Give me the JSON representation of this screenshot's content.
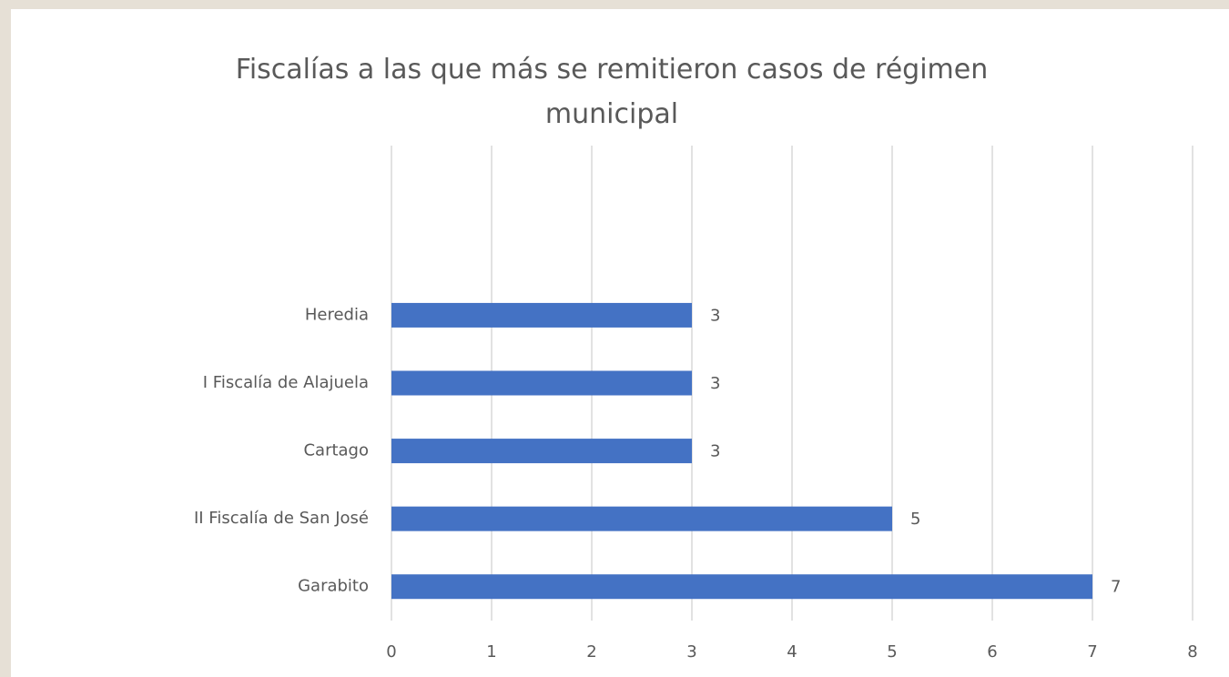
{
  "chart_data": {
    "type": "bar",
    "orientation": "horizontal",
    "title": "Fiscalías a las que más se remitieron casos de régimen municipal",
    "categories": [
      "Garabito",
      "II Fiscalía de San José",
      "Cartago",
      "I Fiscalía de Alajuela",
      "Heredia",
      null,
      null
    ],
    "values": [
      7,
      5,
      3,
      3,
      3,
      null,
      null
    ],
    "color": "#4472c4",
    "xlim": [
      0,
      8
    ],
    "xticks": [
      0,
      1,
      2,
      3,
      4,
      5,
      6,
      7,
      8
    ],
    "grid": true
  }
}
